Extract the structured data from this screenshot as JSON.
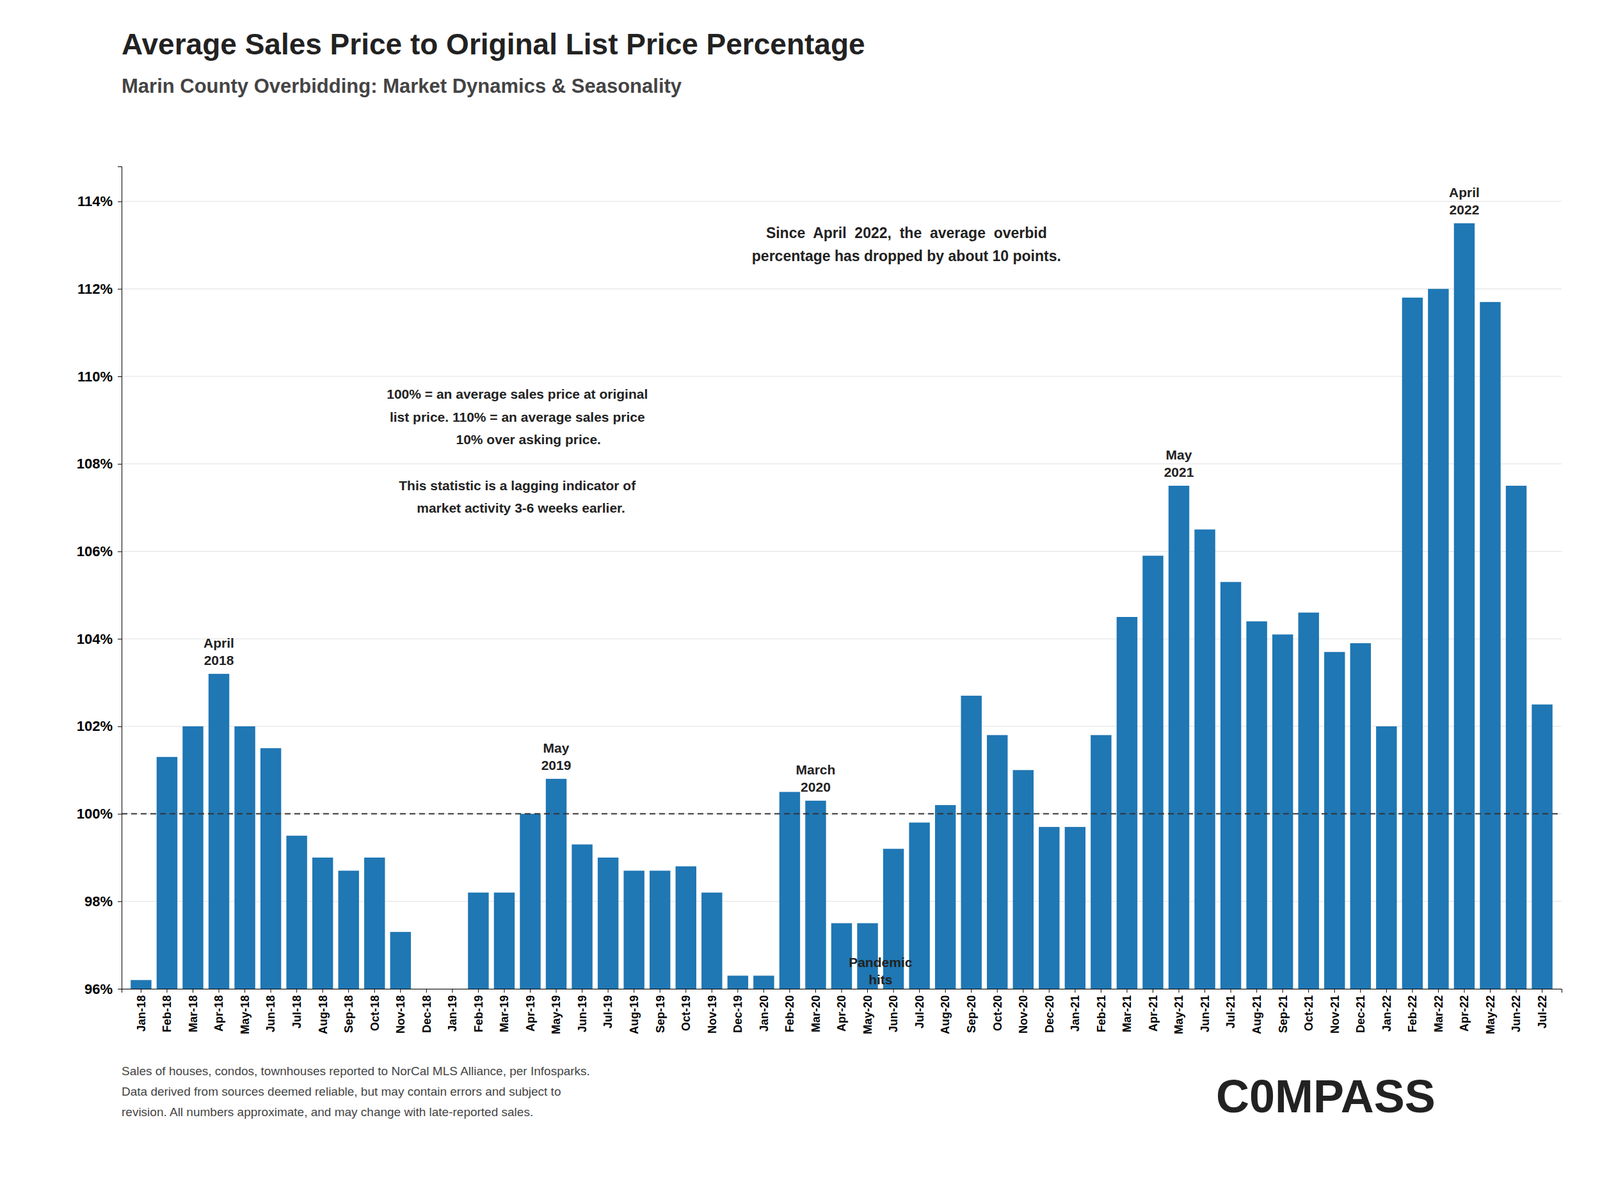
{
  "chart_data": {
    "type": "bar",
    "title": "Average Sales Price to Original List Price Percentage",
    "subtitle": "Marin County Overbidding: Market Dynamics & Seasonality",
    "categories": [
      "Jan-18",
      "Feb-18",
      "Mar-18",
      "Apr-18",
      "May-18",
      "Jun-18",
      "Jul-18",
      "Aug-18",
      "Sep-18",
      "Oct-18",
      "Nov-18",
      "Dec-18",
      "Jan-19",
      "Feb-19",
      "Mar-19",
      "Apr-19",
      "May-19",
      "Jun-19",
      "Jul-19",
      "Aug-19",
      "Sep-19",
      "Oct-19",
      "Nov-19",
      "Dec-19",
      "Jan-20",
      "Feb-20",
      "Mar-20",
      "Apr-20",
      "May-20",
      "Jun-20",
      "Jul-20",
      "Aug-20",
      "Sep-20",
      "Oct-20",
      "Nov-20",
      "Dec-20",
      "Jan-21",
      "Feb-21",
      "Mar-21",
      "Apr-21",
      "May-21",
      "Jun-21",
      "Jul-21",
      "Aug-21",
      "Sep-21",
      "Oct-21",
      "Nov-21",
      "Dec-21",
      "Jan-22",
      "Feb-22",
      "Mar-22",
      "Apr-22",
      "May-22",
      "Jun-22",
      "Jul-22"
    ],
    "values": [
      96.2,
      101.3,
      102.0,
      103.2,
      102.0,
      101.5,
      99.5,
      99.0,
      98.7,
      99.0,
      97.3,
      96.0,
      96.0,
      98.2,
      98.2,
      100.0,
      100.8,
      99.3,
      99.0,
      98.7,
      98.7,
      98.8,
      98.2,
      96.3,
      96.3,
      100.5,
      100.3,
      97.5,
      97.5,
      99.2,
      99.8,
      100.2,
      102.7,
      101.8,
      101.0,
      99.7,
      99.7,
      101.8,
      104.5,
      105.9,
      107.5,
      106.5,
      105.3,
      104.4,
      104.1,
      104.6,
      103.7,
      103.9,
      102.0,
      111.8,
      112.0,
      113.5,
      111.7,
      107.5,
      102.5
    ],
    "ylim": [
      96.0,
      114.8
    ],
    "yticks": [
      {
        "value": 96,
        "label": "96%"
      },
      {
        "value": 98,
        "label": "98%"
      },
      {
        "value": 100,
        "label": "100%"
      },
      {
        "value": 102,
        "label": "102%"
      },
      {
        "value": 104,
        "label": "104%"
      },
      {
        "value": 106,
        "label": "106%"
      },
      {
        "value": 108,
        "label": "108%"
      },
      {
        "value": 110,
        "label": "110%"
      },
      {
        "value": 112,
        "label": "112%"
      },
      {
        "value": 114,
        "label": "114%"
      }
    ],
    "grid": true,
    "reference_line": 100,
    "annotations": [
      {
        "text": "April\n2022",
        "category": "Apr-22"
      },
      {
        "text": "Since  April  2022,  the  average  overbid\npercentage has dropped by about 10 points."
      },
      {
        "text": "100% = an average sales price at original\nlist price. 110% = an average sales price\n      10% over asking price.\n\nThis statistic is a lagging indicator of\n  market activity 3-6 weeks earlier."
      },
      {
        "text": "April\n2018",
        "category": "Apr-18"
      },
      {
        "text": "May\n2019",
        "category": "May-19"
      },
      {
        "text": "March\n2020",
        "category": "Mar-20"
      },
      {
        "text": "Pandemic\nhits"
      },
      {
        "text": "May\n2021",
        "category": "May-21"
      }
    ],
    "footnotes": [
      "Sales of houses, condos, townhouses reported to NorCal MLS Alliance, per Infosparks.",
      "Data derived from sources deemed reliable, but may contain errors and subject to",
      "revision. All numbers approximate, and may change with late-reported sales."
    ],
    "logo": "C0MPASS"
  }
}
